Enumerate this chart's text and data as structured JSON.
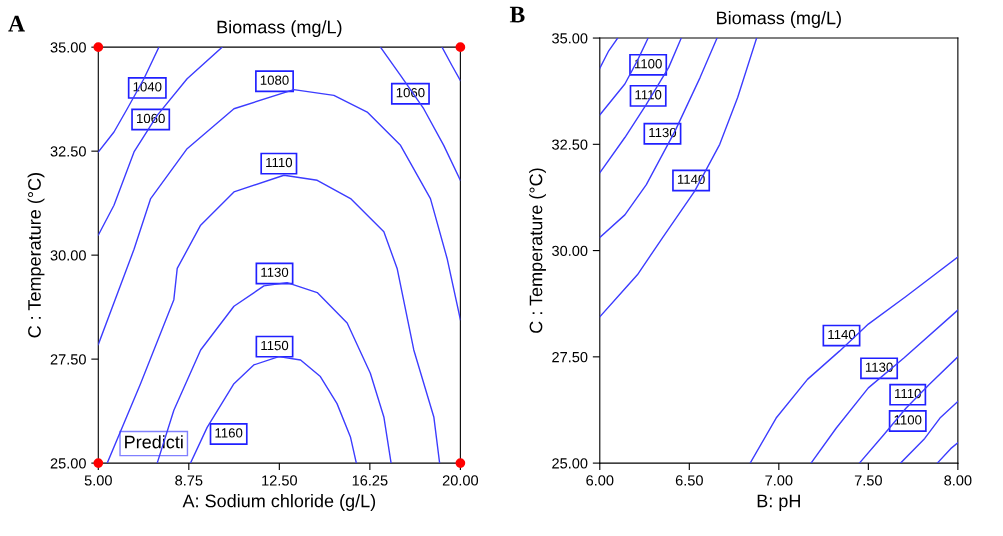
{
  "chart_data": [
    {
      "type": "line",
      "title": "Biomass (mg/L)",
      "xlabel": "A: Sodium chloride (g/L)",
      "ylabel": "C : Temperature (°C)",
      "xlim": [
        5,
        20
      ],
      "xticks": [
        {
          "value": 5,
          "label": "5.00"
        },
        {
          "value": 8.75,
          "label": "8.75"
        },
        {
          "value": 12.5,
          "label": "12.50"
        },
        {
          "value": 16.25,
          "label": "16.25"
        },
        {
          "value": 20,
          "label": "20.00"
        }
      ],
      "ylim": [
        25,
        35
      ],
      "yticks": [
        {
          "value": 25,
          "label": "25.00"
        },
        {
          "value": 27.5,
          "label": "27.50"
        },
        {
          "value": 30,
          "label": "30.00"
        },
        {
          "value": 32.5,
          "label": "32.50"
        },
        {
          "value": 35,
          "label": "35.00"
        }
      ],
      "series": [
        {
          "color": "#3c3cff",
          "x": [
            7.51,
            6.89,
            6.2,
            5.65,
            5.0
          ],
          "values": [
            35,
            34.24,
            33.52,
            32.96,
            32.48
          ]
        },
        {
          "color": "#3c3cff",
          "x": [
            10.13,
            8.68,
            7.44,
            6.48,
            5.65,
            5.0
          ],
          "values": [
            35,
            34.24,
            33.36,
            32.48,
            31.2,
            30.48
          ]
        },
        {
          "color": "#3c3cff",
          "x": [
            16.69,
            17.52,
            18.48,
            19.31,
            20.0
          ],
          "values": [
            35,
            34.32,
            33.52,
            32.64,
            31.8
          ]
        },
        {
          "color": "#3c3cff",
          "x": [
            19.24,
            19.65,
            20.0
          ],
          "values": [
            35,
            34.56,
            34.2
          ]
        },
        {
          "color": "#3c3cff",
          "x": [
            5.0,
            6.48,
            7.17,
            8.68,
            10.62,
            13.1,
            14.76,
            16.14,
            17.52,
            18.76,
            19.45,
            20.0
          ],
          "values": [
            27.85,
            30.14,
            31.36,
            32.56,
            33.52,
            33.98,
            33.84,
            33.44,
            32.64,
            31.36,
            29.92,
            28.45
          ]
        },
        {
          "color": "#3c3cff",
          "x": [
            5.37,
            6.75,
            8.13,
            8.27,
            9.24,
            10.62,
            12.69,
            14.07,
            15.45,
            16.83,
            17.38,
            18.07,
            18.9,
            19.14
          ],
          "values": [
            25,
            26.91,
            28.93,
            29.68,
            30.72,
            31.52,
            31.92,
            31.8,
            31.36,
            30.56,
            29.68,
            27.72,
            26.11,
            25
          ]
        },
        {
          "color": "#3c3cff",
          "x": [
            7.44,
            8.13,
            9.24,
            10.62,
            11.86,
            12.82,
            14.07,
            15.31,
            16.27,
            16.83,
            17.13
          ],
          "values": [
            25,
            26.27,
            27.72,
            28.77,
            29.26,
            29.34,
            29.1,
            28.37,
            27.16,
            26.11,
            25
          ]
        },
        {
          "color": "#3c3cff",
          "x": [
            8.82,
            9.51,
            10.62,
            11.44,
            12.48,
            13.38,
            14.2,
            14.89,
            15.45,
            15.69
          ],
          "values": [
            25,
            25.86,
            26.91,
            27.36,
            27.56,
            27.48,
            27.08,
            26.43,
            25.62,
            25
          ]
        },
        {
          "type": "scatter",
          "color": "#ff0000",
          "marker": "circle",
          "x": [
            5,
            5,
            20,
            20
          ],
          "values": [
            25,
            35,
            25,
            35
          ]
        }
      ],
      "annotations": [
        "A",
        {
          "text": "1040",
          "x": 7.03,
          "y": 34.02
        },
        {
          "text": "1060",
          "x": 7.17,
          "y": 33.26
        },
        {
          "text": "1080",
          "x": 12.3,
          "y": 34.18
        },
        {
          "text": "1060",
          "x": 17.93,
          "y": 33.88
        },
        {
          "text": "1110",
          "x": 12.48,
          "y": 32.2
        },
        {
          "text": "1130",
          "x": 12.3,
          "y": 29.56
        },
        {
          "text": "1150",
          "x": 12.3,
          "y": 27.8
        },
        "Predicti",
        {
          "text": "1160",
          "x": 10.4,
          "y": 25.7
        }
      ]
    },
    {
      "type": "line",
      "title": "Biomass (mg/L)",
      "xlabel": "B: pH",
      "ylabel": "C : Temperature (°C)",
      "xlim": [
        6,
        8
      ],
      "xticks": [
        {
          "value": 6,
          "label": "6.00"
        },
        {
          "value": 6.5,
          "label": "6.50"
        },
        {
          "value": 7,
          "label": "7.00"
        },
        {
          "value": 7.5,
          "label": "7.50"
        },
        {
          "value": 8,
          "label": "8.00"
        }
      ],
      "ylim": [
        25,
        35
      ],
      "yticks": [
        {
          "value": 25,
          "label": "25.00"
        },
        {
          "value": 27.5,
          "label": "27.50"
        },
        {
          "value": 30,
          "label": "30.00"
        },
        {
          "value": 32.5,
          "label": "32.50"
        },
        {
          "value": 35,
          "label": "35.00"
        }
      ],
      "series": [
        {
          "color": "#3c3cff",
          "x": [
            6.1,
            6.05,
            6.0
          ],
          "values": [
            35,
            34.7,
            34.29
          ]
        },
        {
          "color": "#3c3cff",
          "x": [
            6.27,
            6.21,
            6.14,
            6.0
          ],
          "values": [
            35,
            34.47,
            33.92,
            33.19
          ]
        },
        {
          "color": "#3c3cff",
          "x": [
            6.455,
            6.385,
            6.26,
            6.14,
            6.0
          ],
          "values": [
            35,
            34.31,
            33.44,
            32.66,
            31.83
          ]
        },
        {
          "color": "#3c3cff",
          "x": [
            6.655,
            6.56,
            6.42,
            6.26,
            6.14,
            6.0
          ],
          "values": [
            35,
            34.07,
            32.81,
            31.55,
            30.84,
            30.31
          ]
        },
        {
          "color": "#3c3cff",
          "x": [
            6.876,
            6.77,
            6.67,
            6.53,
            6.35,
            6.21,
            6.14,
            6.0
          ],
          "values": [
            35,
            33.6,
            32.5,
            31.4,
            30.3,
            29.43,
            29.1,
            28.44
          ]
        },
        {
          "color": "#3c3cff",
          "x": [
            6.84,
            6.985,
            7.16,
            7.34,
            7.5,
            7.71,
            8.0
          ],
          "values": [
            25,
            26.06,
            26.97,
            27.64,
            28.27,
            28.92,
            29.85
          ]
        },
        {
          "color": "#3c3cff",
          "x": [
            7.18,
            7.32,
            7.5,
            7.7,
            8.0
          ],
          "values": [
            25,
            25.82,
            26.77,
            27.48,
            28.6
          ]
        },
        {
          "color": "#3c3cff",
          "x": [
            7.45,
            7.585,
            7.71,
            7.84,
            8.0
          ],
          "values": [
            25,
            25.66,
            26.29,
            26.85,
            27.5
          ]
        },
        {
          "color": "#3c3cff",
          "x": [
            7.68,
            7.815,
            7.9,
            8.0
          ],
          "values": [
            25,
            25.58,
            26.06,
            26.45
          ]
        },
        {
          "color": "#3c3cff",
          "x": [
            7.885,
            7.96,
            8.0
          ],
          "values": [
            25,
            25.34,
            25.48
          ]
        }
      ],
      "annotations": [
        "B",
        {
          "text": "1100",
          "x": 6.27,
          "y": 34.37
        },
        {
          "text": "1110",
          "x": 6.27,
          "y": 33.64
        },
        {
          "text": "1130",
          "x": 6.35,
          "y": 32.75
        },
        {
          "text": "1140",
          "x": 6.51,
          "y": 31.65
        },
        {
          "text": "1140",
          "x": 7.35,
          "y": 28.0
        },
        {
          "text": "1130",
          "x": 7.56,
          "y": 27.23
        },
        {
          "text": "1110",
          "x": 7.72,
          "y": 26.61
        },
        {
          "text": "1100",
          "x": 7.72,
          "y": 25.99
        }
      ]
    }
  ]
}
